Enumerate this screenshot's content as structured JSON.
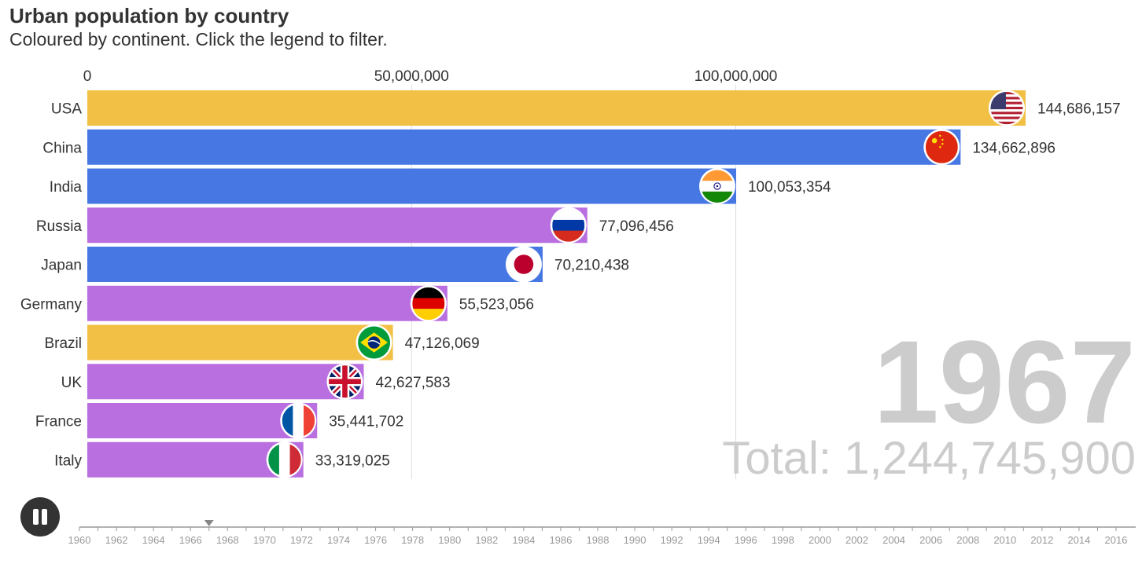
{
  "header": {
    "title": "Urban population by country",
    "subtitle": "Coloured by continent. Click the legend to filter."
  },
  "colors": {
    "americas": "#f2c044",
    "asia": "#4677e3",
    "europe": "#b96fe0",
    "grid": "#dddddd",
    "year": "#cccccc",
    "text": "#333333",
    "timeline": "#999999"
  },
  "controls": {
    "play_state": "pause",
    "icon": "pause-icon"
  },
  "chart_data": {
    "type": "bar",
    "orientation": "horizontal",
    "title": "Urban population by country",
    "subtitle": "Coloured by continent. Click the legend to filter.",
    "xlim": [
      0,
      144686157
    ],
    "x_ticks": [
      0,
      50000000,
      100000000
    ],
    "x_tick_labels": [
      "0",
      "50,000,000",
      "100,000,000"
    ],
    "categories": [
      "USA",
      "China",
      "India",
      "Russia",
      "Japan",
      "Germany",
      "Brazil",
      "UK",
      "France",
      "Italy"
    ],
    "values": [
      144686157,
      134662896,
      100053354,
      77096456,
      70210438,
      55523056,
      47126069,
      42627583,
      35441702,
      33319025
    ],
    "value_labels": [
      "144,686,157",
      "134,662,896",
      "100,053,354",
      "77,096,456",
      "70,210,438",
      "55,523,056",
      "47,126,069",
      "42,627,583",
      "35,441,702",
      "33,319,025"
    ],
    "continents": [
      "americas",
      "asia",
      "asia",
      "europe",
      "asia",
      "europe",
      "americas",
      "europe",
      "europe",
      "europe"
    ],
    "flags": [
      "usa-flag-icon",
      "china-flag-icon",
      "india-flag-icon",
      "russia-flag-icon",
      "japan-flag-icon",
      "germany-flag-icon",
      "brazil-flag-icon",
      "uk-flag-icon",
      "france-flag-icon",
      "italy-flag-icon"
    ],
    "year": "1967",
    "total_label": "Total: 1,244,745,900",
    "timeline": {
      "start": 1960,
      "end": 2016,
      "current": 1967,
      "labels": [
        "1960",
        "1962",
        "1964",
        "1966",
        "1968",
        "1970",
        "1972",
        "1974",
        "1976",
        "1978",
        "1980",
        "1982",
        "1984",
        "1986",
        "1988",
        "1990",
        "1992",
        "1994",
        "1996",
        "1998",
        "2000",
        "2002",
        "2004",
        "2006",
        "2008",
        "2010",
        "2012",
        "2014",
        "2016"
      ]
    }
  }
}
